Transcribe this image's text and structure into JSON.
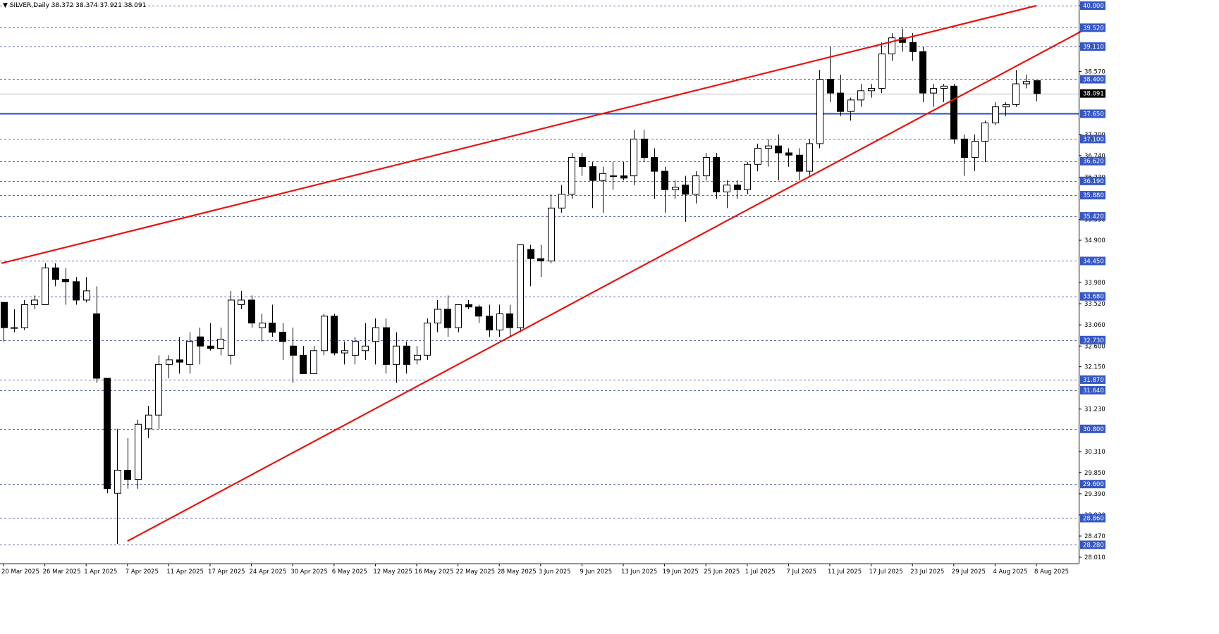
{
  "header": {
    "symbol_label": "SILVER,Daily",
    "ohlc_text": "38.372 38.374 37.921 38.091"
  },
  "colors": {
    "background": "#ffffff",
    "grid_dash": "#2b3b8f",
    "trendline": "#e8140f",
    "support_line": "#1f4fd6",
    "level_badge": "#3557c6",
    "current_price_badge": "#000000"
  },
  "chart_data": {
    "type": "candlestick",
    "title": "",
    "symbol": "SILVER",
    "timeframe": "Daily",
    "current_price": 38.091,
    "current_price_label": "38.091",
    "ylim": [
      28.01,
      40.0
    ],
    "grid": true,
    "y_tick_labels": [
      "40.000",
      "39.110",
      "38.570",
      "37.200",
      "36.740",
      "36.270",
      "35.350",
      "34.900",
      "33.980",
      "33.520",
      "33.060",
      "32.600",
      "32.150",
      "31.230",
      "30.310",
      "29.850",
      "29.390",
      "28.930",
      "28.470",
      "28.010"
    ],
    "level_lines": [
      {
        "value": 40.0,
        "label": "40.000"
      },
      {
        "value": 39.52,
        "label": "39.520"
      },
      {
        "value": 39.11,
        "label": "39.110"
      },
      {
        "value": 38.4,
        "label": "38.400"
      },
      {
        "value": 37.65,
        "label": "37.650"
      },
      {
        "value": 37.1,
        "label": "37.100"
      },
      {
        "value": 36.62,
        "label": "36.620"
      },
      {
        "value": 36.19,
        "label": "36.190"
      },
      {
        "value": 35.88,
        "label": "35.880"
      },
      {
        "value": 35.42,
        "label": "35.420"
      },
      {
        "value": 34.45,
        "label": "34.450"
      },
      {
        "value": 33.68,
        "label": "33.680"
      },
      {
        "value": 32.73,
        "label": "32.730"
      },
      {
        "value": 31.87,
        "label": "31.870"
      },
      {
        "value": 31.64,
        "label": "31.640"
      },
      {
        "value": 30.8,
        "label": "30.800"
      },
      {
        "value": 29.6,
        "label": "29.600"
      },
      {
        "value": 28.86,
        "label": "28.860"
      },
      {
        "value": 28.28,
        "label": "28.280"
      }
    ],
    "support_level": {
      "value": 37.65
    },
    "x_labels": [
      {
        "i": 0,
        "label": "20 Mar 2025"
      },
      {
        "i": 4,
        "label": "26 Mar 2025"
      },
      {
        "i": 8,
        "label": "1 Apr 2025"
      },
      {
        "i": 12,
        "label": "7 Apr 2025"
      },
      {
        "i": 16,
        "label": "11 Apr 2025"
      },
      {
        "i": 20,
        "label": "17 Apr 2025"
      },
      {
        "i": 24,
        "label": "24 Apr 2025"
      },
      {
        "i": 28,
        "label": "30 Apr 2025"
      },
      {
        "i": 32,
        "label": "6 May 2025"
      },
      {
        "i": 36,
        "label": "12 May 2025"
      },
      {
        "i": 40,
        "label": "16 May 2025"
      },
      {
        "i": 44,
        "label": "22 May 2025"
      },
      {
        "i": 48,
        "label": "28 May 2025"
      },
      {
        "i": 52,
        "label": "3 Jun 2025"
      },
      {
        "i": 56,
        "label": "9 Jun 2025"
      },
      {
        "i": 60,
        "label": "13 Jun 2025"
      },
      {
        "i": 64,
        "label": "19 Jun 2025"
      },
      {
        "i": 68,
        "label": "25 Jun 2025"
      },
      {
        "i": 72,
        "label": "1 Jul 2025"
      },
      {
        "i": 76,
        "label": "7 Jul 2025"
      },
      {
        "i": 80,
        "label": "11 Jul 2025"
      },
      {
        "i": 84,
        "label": "17 Jul 2025"
      },
      {
        "i": 88,
        "label": "23 Jul 2025"
      },
      {
        "i": 92,
        "label": "29 Jul 2025"
      },
      {
        "i": 96,
        "label": "4 Aug 2025"
      },
      {
        "i": 100,
        "label": "8 Aug 2025"
      }
    ],
    "trendlines": [
      {
        "name": "upper",
        "points": [
          [
            -0.2,
            34.4
          ],
          [
            100.0,
            40.0
          ]
        ]
      },
      {
        "name": "lower",
        "points": [
          [
            12.0,
            28.36
          ],
          [
            105.0,
            39.52
          ]
        ]
      }
    ],
    "candles": [
      [
        33.55,
        33.55,
        32.7,
        33.0
      ],
      [
        33.0,
        33.4,
        32.9,
        33.0
      ],
      [
        33.0,
        33.6,
        32.95,
        33.5
      ],
      [
        33.5,
        33.7,
        33.4,
        33.6
      ],
      [
        33.5,
        34.4,
        33.5,
        34.3
      ],
      [
        34.3,
        34.4,
        33.9,
        34.05
      ],
      [
        34.05,
        34.3,
        33.5,
        34.0
      ],
      [
        34.0,
        34.1,
        33.5,
        33.6
      ],
      [
        33.6,
        34.1,
        33.55,
        33.8
      ],
      [
        33.3,
        33.9,
        31.8,
        31.9
      ],
      [
        31.9,
        31.9,
        29.4,
        29.5
      ],
      [
        29.4,
        30.8,
        28.3,
        29.9
      ],
      [
        29.9,
        30.6,
        29.5,
        29.7
      ],
      [
        29.7,
        31.0,
        29.5,
        30.9
      ],
      [
        30.8,
        31.3,
        30.6,
        31.1
      ],
      [
        31.1,
        32.4,
        30.8,
        32.2
      ],
      [
        32.2,
        32.4,
        31.9,
        32.3
      ],
      [
        32.3,
        32.8,
        32.0,
        32.25
      ],
      [
        32.2,
        32.9,
        32.0,
        32.7
      ],
      [
        32.8,
        33.0,
        32.2,
        32.6
      ],
      [
        32.6,
        33.1,
        32.5,
        32.55
      ],
      [
        32.55,
        33.0,
        32.4,
        32.75
      ],
      [
        32.4,
        33.8,
        32.2,
        33.6
      ],
      [
        33.5,
        33.8,
        33.4,
        33.6
      ],
      [
        33.6,
        33.7,
        33.0,
        33.1
      ],
      [
        33.0,
        33.3,
        32.7,
        33.1
      ],
      [
        33.1,
        33.5,
        32.8,
        32.9
      ],
      [
        32.9,
        33.1,
        32.3,
        32.7
      ],
      [
        32.6,
        33.0,
        31.8,
        32.4
      ],
      [
        32.4,
        32.6,
        32.0,
        32.0
      ],
      [
        32.0,
        32.6,
        32.0,
        32.5
      ],
      [
        32.5,
        33.3,
        32.4,
        33.25
      ],
      [
        33.25,
        33.3,
        32.4,
        32.45
      ],
      [
        32.45,
        32.7,
        32.2,
        32.5
      ],
      [
        32.4,
        32.8,
        32.2,
        32.7
      ],
      [
        32.5,
        33.1,
        32.3,
        32.6
      ],
      [
        32.7,
        33.2,
        32.2,
        33.0
      ],
      [
        33.0,
        33.2,
        32.0,
        32.2
      ],
      [
        32.2,
        32.9,
        31.8,
        32.6
      ],
      [
        32.6,
        32.7,
        32.0,
        32.2
      ],
      [
        32.3,
        32.6,
        32.2,
        32.4
      ],
      [
        32.4,
        33.2,
        32.3,
        33.1
      ],
      [
        33.1,
        33.6,
        32.9,
        33.4
      ],
      [
        33.4,
        33.7,
        32.8,
        33.0
      ],
      [
        33.0,
        33.5,
        32.9,
        33.5
      ],
      [
        33.5,
        33.6,
        33.4,
        33.45
      ],
      [
        33.45,
        33.5,
        33.1,
        33.25
      ],
      [
        33.25,
        33.5,
        32.8,
        32.95
      ],
      [
        32.95,
        33.5,
        32.8,
        33.3
      ],
      [
        33.3,
        33.5,
        32.8,
        33.0
      ],
      [
        33.0,
        34.8,
        32.9,
        34.8
      ],
      [
        34.7,
        34.8,
        33.9,
        34.5
      ],
      [
        34.5,
        34.8,
        34.1,
        34.45
      ],
      [
        34.45,
        35.9,
        34.4,
        35.6
      ],
      [
        35.6,
        36.1,
        35.5,
        35.9
      ],
      [
        35.9,
        36.8,
        35.8,
        36.7
      ],
      [
        36.7,
        36.8,
        36.3,
        36.5
      ],
      [
        36.5,
        36.6,
        35.6,
        36.2
      ],
      [
        36.2,
        36.5,
        35.5,
        36.35
      ],
      [
        36.3,
        36.6,
        36.0,
        36.3
      ],
      [
        36.3,
        36.6,
        36.2,
        36.25
      ],
      [
        36.3,
        37.3,
        36.1,
        37.1
      ],
      [
        37.1,
        37.3,
        36.6,
        36.7
      ],
      [
        36.7,
        36.9,
        35.8,
        36.4
      ],
      [
        36.4,
        36.5,
        35.5,
        36.0
      ],
      [
        36.0,
        36.2,
        35.8,
        36.05
      ],
      [
        36.1,
        36.3,
        35.3,
        35.9
      ],
      [
        35.9,
        36.4,
        35.7,
        36.3
      ],
      [
        36.3,
        36.8,
        36.2,
        36.7
      ],
      [
        36.7,
        36.8,
        35.8,
        35.95
      ],
      [
        35.95,
        36.2,
        35.6,
        36.1
      ],
      [
        36.1,
        36.2,
        35.8,
        36.0
      ],
      [
        36.0,
        36.6,
        35.9,
        36.55
      ],
      [
        36.55,
        37.0,
        36.4,
        36.9
      ],
      [
        36.9,
        37.1,
        36.5,
        36.95
      ],
      [
        36.95,
        37.2,
        36.2,
        36.8
      ],
      [
        36.8,
        36.9,
        36.5,
        36.75
      ],
      [
        36.75,
        36.9,
        36.2,
        36.4
      ],
      [
        36.4,
        37.1,
        36.3,
        37.0
      ],
      [
        37.0,
        38.6,
        36.9,
        38.4
      ],
      [
        38.4,
        39.1,
        37.9,
        38.1
      ],
      [
        38.1,
        38.5,
        37.6,
        37.7
      ],
      [
        37.7,
        38.0,
        37.5,
        37.95
      ],
      [
        37.95,
        38.3,
        37.8,
        38.15
      ],
      [
        38.15,
        38.3,
        38.0,
        38.2
      ],
      [
        38.2,
        39.2,
        38.1,
        38.95
      ],
      [
        38.95,
        39.4,
        38.8,
        39.3
      ],
      [
        39.3,
        39.5,
        39.0,
        39.2
      ],
      [
        39.2,
        39.4,
        38.8,
        39.0
      ],
      [
        39.0,
        39.1,
        37.9,
        38.1
      ],
      [
        38.1,
        38.3,
        37.8,
        38.2
      ],
      [
        38.2,
        38.3,
        37.9,
        38.25
      ],
      [
        38.25,
        38.3,
        37.0,
        37.1
      ],
      [
        37.1,
        37.2,
        36.3,
        36.7
      ],
      [
        36.7,
        37.2,
        36.4,
        37.05
      ],
      [
        37.05,
        37.5,
        36.6,
        37.45
      ],
      [
        37.45,
        37.9,
        37.4,
        37.8
      ],
      [
        37.8,
        37.9,
        37.6,
        37.85
      ],
      [
        37.85,
        38.6,
        37.8,
        38.3
      ],
      [
        38.3,
        38.5,
        38.2,
        38.35
      ],
      [
        38.37,
        38.37,
        37.92,
        38.09
      ]
    ]
  }
}
